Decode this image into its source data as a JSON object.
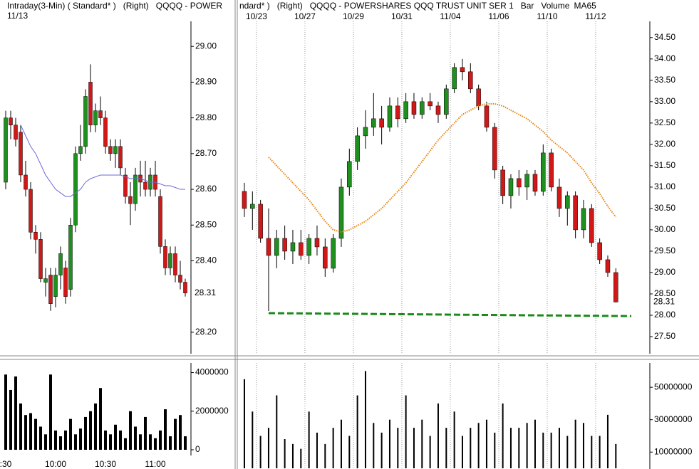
{
  "chart_data": [
    {
      "type": "candlestick",
      "title": "Intraday(3-Min) ( Standard* )   (Right)   QQQQ - POWER",
      "subtitle": "11/13",
      "up_color": "#1f8f1f",
      "down_color": "#d01818",
      "open": [
        28.62,
        28.8,
        28.78,
        28.76,
        28.64,
        28.6,
        28.48,
        28.46,
        28.34,
        28.36,
        28.3,
        28.36,
        28.38,
        28.32,
        28.5,
        28.7,
        28.72,
        28.9,
        28.78,
        28.82,
        28.8,
        28.72,
        28.7,
        28.72,
        28.64,
        28.58,
        28.56,
        28.64,
        28.62,
        28.6,
        28.64,
        28.58,
        28.44,
        28.38,
        28.42,
        28.36,
        28.34
      ],
      "high": [
        28.82,
        28.82,
        28.8,
        28.78,
        28.68,
        28.62,
        28.5,
        28.48,
        28.38,
        28.38,
        28.38,
        28.44,
        28.4,
        28.52,
        28.72,
        28.78,
        28.88,
        28.95,
        28.84,
        28.86,
        28.82,
        28.74,
        28.74,
        28.74,
        28.66,
        28.62,
        28.66,
        28.68,
        28.68,
        28.66,
        28.68,
        28.6,
        28.46,
        28.44,
        28.44,
        28.4,
        28.35
      ],
      "low": [
        28.6,
        28.74,
        28.72,
        28.62,
        28.58,
        28.46,
        28.42,
        28.34,
        28.3,
        28.26,
        28.27,
        28.32,
        28.28,
        28.3,
        28.48,
        28.68,
        28.7,
        28.76,
        28.76,
        28.78,
        28.7,
        28.68,
        28.66,
        28.64,
        28.56,
        28.5,
        28.54,
        28.58,
        28.58,
        28.58,
        28.58,
        28.42,
        28.36,
        28.36,
        28.34,
        28.32,
        28.3
      ],
      "close": [
        28.8,
        28.78,
        28.74,
        28.64,
        28.6,
        28.48,
        28.46,
        28.35,
        28.35,
        28.28,
        28.36,
        28.42,
        28.3,
        28.5,
        28.7,
        28.72,
        28.86,
        28.78,
        28.82,
        28.8,
        28.72,
        28.7,
        28.72,
        28.66,
        28.58,
        28.56,
        28.64,
        28.62,
        28.6,
        28.64,
        28.6,
        28.44,
        28.38,
        28.42,
        28.36,
        28.34,
        28.31
      ],
      "ma": {
        "color": "#6a6ad8",
        "values": [
          null,
          null,
          null,
          28.78,
          28.75,
          28.72,
          28.7,
          28.67,
          28.64,
          28.62,
          28.6,
          28.59,
          28.58,
          28.58,
          28.59,
          28.6,
          28.62,
          28.63,
          28.635,
          28.64,
          28.64,
          28.64,
          28.64,
          28.64,
          28.635,
          28.63,
          28.63,
          28.63,
          28.625,
          28.62,
          28.62,
          28.615,
          28.61,
          28.61,
          28.605,
          28.6,
          28.6
        ]
      },
      "ylim": [
        28.14,
        29.1
      ],
      "yticks": [
        {
          "value": 28.2,
          "label": "28.20"
        },
        {
          "value": 28.4,
          "label": "28.40"
        },
        {
          "value": 28.5,
          "label": "28.50"
        },
        {
          "value": 28.6,
          "label": "28.60"
        },
        {
          "value": 28.7,
          "label": "28.70"
        },
        {
          "value": 28.8,
          "label": "28.80"
        },
        {
          "value": 28.9,
          "label": "28.90"
        },
        {
          "value": 29,
          "label": "29.00"
        }
      ],
      "last_price": 28.31,
      "grid": false
    },
    {
      "type": "bar",
      "color": "#000000",
      "categories": [
        ":30",
        null,
        null,
        null,
        null,
        null,
        null,
        null,
        null,
        null,
        "10:00",
        null,
        null,
        null,
        null,
        null,
        null,
        null,
        null,
        null,
        "10:30",
        null,
        null,
        null,
        null,
        null,
        null,
        null,
        null,
        null,
        "11:00",
        null,
        null,
        null,
        null,
        null,
        null
      ],
      "values": [
        3900000,
        3100000,
        3800000,
        2400000,
        1800000,
        1900000,
        1600000,
        1200000,
        800000,
        3900000,
        1000000,
        700000,
        1000000,
        1600000,
        800000,
        1100000,
        1700000,
        2000000,
        2400000,
        3200000,
        1000000,
        800000,
        1300000,
        1000000,
        600000,
        2000000,
        1200000,
        800000,
        1700000,
        800000,
        600000,
        1000000,
        2100000,
        700000,
        1600000,
        1800000,
        700000
      ],
      "ylim": [
        0,
        4500000
      ],
      "yticks": [
        0,
        2000000,
        4000000
      ],
      "grid": false
    },
    {
      "type": "candlestick",
      "title": "ndard* )   (Right)   QQQQ - POWERSHARES QQQ TRUST UNIT SER 1   Bar   Volume",
      "up_color": "#1f8f1f",
      "down_color": "#d01818",
      "categories": [
        null,
        null,
        "10/23",
        null,
        null,
        null,
        null,
        null,
        "10/27",
        null,
        null,
        null,
        null,
        null,
        "10/29",
        null,
        null,
        null,
        null,
        null,
        "10/31",
        null,
        null,
        null,
        null,
        null,
        "11/04",
        null,
        null,
        null,
        null,
        null,
        "11/06",
        null,
        null,
        null,
        null,
        null,
        "11/10",
        null,
        null,
        null,
        null,
        null,
        "11/12",
        null,
        null
      ],
      "open": [
        30.9,
        30.5,
        30.6,
        29.8,
        29.4,
        29.8,
        29.5,
        29.7,
        29.4,
        29.8,
        29.6,
        29.1,
        29.8,
        31.0,
        31.6,
        32.2,
        32.4,
        32.6,
        32.4,
        32.9,
        32.6,
        33.0,
        32.7,
        33.0,
        32.9,
        32.7,
        33.3,
        33.8,
        33.7,
        33.3,
        32.9,
        32.4,
        31.4,
        30.8,
        31.2,
        31.0,
        31.3,
        30.9,
        31.8,
        31.0,
        30.5,
        30.8,
        30.0,
        30.5,
        29.7,
        29.3,
        29.0
      ],
      "high": [
        31.1,
        30.9,
        30.7,
        30.5,
        30.0,
        30.1,
        30.0,
        30.0,
        29.9,
        30.1,
        29.8,
        29.9,
        31.2,
        31.9,
        32.4,
        32.8,
        33.2,
        32.9,
        33.1,
        33.1,
        33.2,
        33.2,
        33.1,
        33.2,
        33.0,
        33.4,
        33.9,
        34.0,
        33.9,
        33.4,
        33.0,
        32.5,
        31.5,
        31.3,
        31.4,
        31.4,
        31.4,
        32.0,
        31.9,
        31.2,
        30.9,
        30.9,
        30.7,
        30.6,
        29.8,
        29.4,
        29.1
      ],
      "low": [
        30.3,
        30.0,
        29.7,
        28.1,
        29.1,
        29.3,
        29.2,
        29.3,
        29.2,
        29.4,
        28.9,
        29.0,
        29.6,
        30.8,
        31.4,
        31.9,
        32.2,
        32.0,
        32.3,
        32.4,
        32.5,
        32.6,
        32.6,
        32.8,
        32.5,
        32.6,
        33.2,
        33.5,
        33.2,
        32.8,
        32.3,
        31.2,
        30.6,
        30.5,
        30.8,
        30.7,
        30.8,
        30.8,
        30.9,
        30.3,
        30.1,
        29.8,
        29.8,
        29.6,
        29.2,
        28.9,
        28.3
      ],
      "close": [
        30.5,
        30.6,
        29.8,
        29.4,
        29.8,
        29.5,
        29.7,
        29.4,
        29.8,
        29.6,
        29.1,
        29.8,
        31.0,
        31.6,
        32.2,
        32.4,
        32.6,
        32.4,
        32.9,
        32.6,
        33.0,
        32.7,
        33.0,
        32.9,
        32.7,
        33.3,
        33.8,
        33.7,
        33.3,
        32.9,
        32.4,
        31.4,
        30.8,
        31.2,
        31.0,
        31.3,
        30.9,
        31.8,
        31.0,
        30.5,
        30.8,
        30.0,
        30.5,
        29.7,
        29.3,
        29.0,
        28.31
      ],
      "ma": {
        "name": "MA65",
        "color": "#e8820c",
        "values": [
          null,
          null,
          null,
          31.7,
          31.5,
          31.3,
          31.1,
          30.9,
          30.7,
          30.45,
          30.2,
          30.0,
          29.95,
          30.0,
          30.1,
          30.2,
          30.35,
          30.5,
          30.7,
          30.9,
          31.1,
          31.35,
          31.6,
          31.85,
          32.1,
          32.3,
          32.5,
          32.7,
          32.8,
          32.9,
          32.95,
          32.95,
          32.9,
          32.8,
          32.7,
          32.6,
          32.45,
          32.3,
          32.1,
          31.95,
          31.8,
          31.6,
          31.4,
          31.1,
          30.85,
          30.55,
          30.3
        ]
      },
      "support_line": [
        28.05,
        27.98
      ],
      "support_color": "#1a8a1a",
      "ylim": [
        27.1,
        35.13
      ],
      "yticks": [
        {
          "value": 27.5,
          "label": "27.50"
        },
        {
          "value": 28,
          "label": "28.00"
        },
        {
          "value": 28.5,
          "label": "28.50"
        },
        {
          "value": 29,
          "label": "29.00"
        },
        {
          "value": 29.5,
          "label": "29.50"
        },
        {
          "value": 30,
          "label": "30.00"
        },
        {
          "value": 30.5,
          "label": "30.50"
        },
        {
          "value": 31,
          "label": "31.00"
        },
        {
          "value": 31.5,
          "label": "31.50"
        },
        {
          "value": 32,
          "label": "32.00"
        },
        {
          "value": 32.5,
          "label": "32.50"
        },
        {
          "value": 33,
          "label": "33.00"
        },
        {
          "value": 33.5,
          "label": "33.50"
        },
        {
          "value": 34,
          "label": "34.00"
        },
        {
          "value": 34.5,
          "label": "34.50"
        }
      ],
      "last_price": 28.31,
      "grid": true
    },
    {
      "type": "bar",
      "color": "#000000",
      "values": [
        55000000,
        35000000,
        20000000,
        25000000,
        45000000,
        18000000,
        15000000,
        12000000,
        35000000,
        22000000,
        15000000,
        25000000,
        30000000,
        20000000,
        45000000,
        60000000,
        28000000,
        22000000,
        30000000,
        25000000,
        45000000,
        25000000,
        30000000,
        20000000,
        40000000,
        25000000,
        35000000,
        20000000,
        25000000,
        28000000,
        30000000,
        22000000,
        40000000,
        25000000,
        25000000,
        28000000,
        30000000,
        22000000,
        22000000,
        25000000,
        20000000,
        30000000,
        28000000,
        20000000,
        20000000,
        33000000,
        15000000
      ],
      "ylim": [
        0,
        65000000
      ],
      "yticks": [
        10000000,
        30000000,
        50000000
      ],
      "grid": true
    }
  ]
}
